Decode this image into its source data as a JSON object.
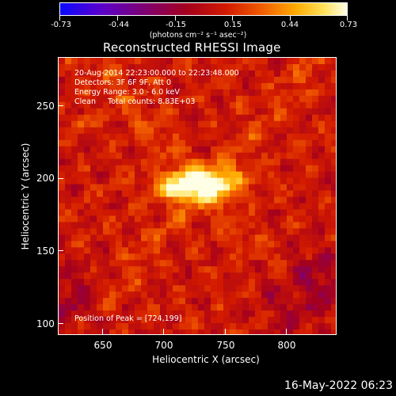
{
  "colorbar": {
    "tick_labels": [
      "-0.73",
      "-0.44",
      "-0.15",
      "0.15",
      "0.44",
      "0.73"
    ],
    "units": "(photons cm⁻² s⁻¹ asec⁻²)"
  },
  "title": "Reconstructed RHESSI Image",
  "info": {
    "time_range": "20-Aug-2014 22:23:00.000 to 22:23:48.000",
    "detectors": "Detectors: 3F 6F 9F, Att 0",
    "energy": "Energy Range: 3.0 - 6.0 keV",
    "clean": "Clean     Total counts: 8.83E+03",
    "peak": "Position of Peak = [724,199]"
  },
  "axes": {
    "xlabel": "Heliocentric X (arcsec)",
    "ylabel": "Heliocentric Y (arcsec)",
    "xticks": [
      "650",
      "700",
      "750",
      "800"
    ],
    "yticks": [
      "100",
      "150",
      "200",
      "250"
    ]
  },
  "timestamp": "16-May-2022 06:23",
  "colors": {
    "background": "#000000",
    "text": "#ffffff",
    "colormap": [
      "#0a0aff",
      "#7a007a",
      "#a4001e",
      "#d21a00",
      "#f05a00",
      "#ffaa00",
      "#ffe15a",
      "#ffffe6"
    ]
  }
}
